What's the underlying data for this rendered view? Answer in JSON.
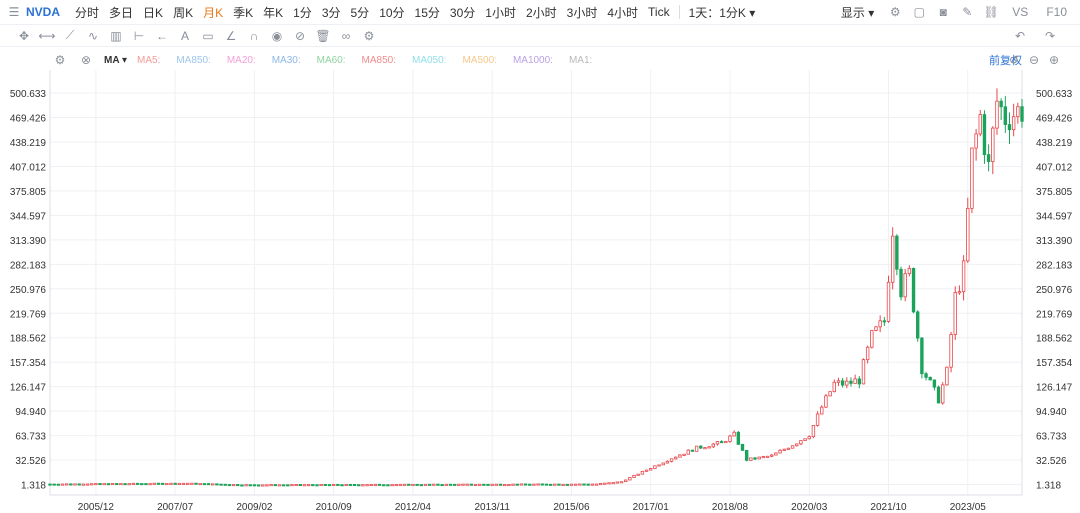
{
  "toolbar": {
    "symbol": "NVDA",
    "periods": [
      "分时",
      "多日",
      "日K",
      "周K",
      "月K",
      "季K",
      "年K",
      "1分",
      "3分",
      "5分",
      "10分",
      "15分",
      "30分",
      "1小时",
      "2小时",
      "3小时",
      "4小时",
      "Tick"
    ],
    "active_period": "月K",
    "range": "1天：1分K",
    "display": "显示",
    "vs": "VS",
    "f10": "F10"
  },
  "indicator": {
    "name": "MA",
    "items": [
      {
        "label": "MA5:",
        "color": "#f29a9a"
      },
      {
        "label": "MA850:",
        "color": "#9cc6ea"
      },
      {
        "label": "MA20:",
        "color": "#f4a0d8"
      },
      {
        "label": "MA30:",
        "color": "#8db7e8"
      },
      {
        "label": "MA60:",
        "color": "#8fd3a0"
      },
      {
        "label": "MA850:",
        "color": "#f08c8c"
      },
      {
        "label": "MA050:",
        "color": "#8fe0e8"
      },
      {
        "label": "MA500:",
        "color": "#f5c98a"
      },
      {
        "label": "MA1000:",
        "color": "#b7a2e6"
      },
      {
        "label": "MA1:",
        "color": "#b9b9b9"
      }
    ],
    "adjust_label": "前复权"
  },
  "colors": {
    "up": "#e8474b",
    "down": "#1aa35b",
    "grid": "#eef0f3",
    "accent": "#2b72d6"
  },
  "chart_data": {
    "type": "candlestick",
    "title": "",
    "xlabel": "",
    "ylabel": "",
    "y_ticks": [
      1.318,
      32.526,
      63.733,
      94.94,
      126.147,
      157.354,
      188.562,
      219.769,
      250.976,
      282.183,
      313.39,
      344.597,
      375.805,
      407.012,
      438.219,
      469.426,
      500.633
    ],
    "y_tick_labels": [
      "1.318",
      "32.526",
      "63.733",
      "94.940",
      "126.147",
      "157.354",
      "188.562",
      "219.769",
      "250.976",
      "282.183",
      "313.390",
      "344.597",
      "375.805",
      "407.012",
      "438.219",
      "469.426",
      "500.633"
    ],
    "ylim": [
      -12,
      530
    ],
    "x_start": "2005/01",
    "x_end": "2024/06",
    "x_ticks": [
      "2005/12",
      "2007/07",
      "2009/02",
      "2010/09",
      "2012/04",
      "2013/11",
      "2015/06",
      "2017/01",
      "2018/08",
      "2020/03",
      "2021/10",
      "2023/05"
    ],
    "grid": true,
    "keypoints": [
      [
        "2005/01",
        2
      ],
      [
        "2007/10",
        3
      ],
      [
        "2008/11",
        1
      ],
      [
        "2015/12",
        2
      ],
      [
        "2016/06",
        5
      ],
      [
        "2016/12",
        20
      ],
      [
        "2017/06",
        35
      ],
      [
        "2017/12",
        48
      ],
      [
        "2018/06",
        55
      ],
      [
        "2018/09",
        65
      ],
      [
        "2018/12",
        33
      ],
      [
        "2019/06",
        38
      ],
      [
        "2019/12",
        55
      ],
      [
        "2020/03",
        65
      ],
      [
        "2020/06",
        100
      ],
      [
        "2020/09",
        130
      ],
      [
        "2020/12",
        130
      ],
      [
        "2021/03",
        135
      ],
      [
        "2021/06",
        190
      ],
      [
        "2021/09",
        210
      ],
      [
        "2021/11",
        330
      ],
      [
        "2022/01",
        250
      ],
      [
        "2022/03",
        270
      ],
      [
        "2022/06",
        150
      ],
      [
        "2022/09",
        120
      ],
      [
        "2022/10",
        110
      ],
      [
        "2022/12",
        145
      ],
      [
        "2023/02",
        240
      ],
      [
        "2023/04",
        275
      ],
      [
        "2023/06",
        420
      ],
      [
        "2023/08",
        470
      ],
      [
        "2023/10",
        405
      ],
      [
        "2023/12",
        490
      ],
      [
        "2024/02",
        470
      ],
      [
        "2024/06",
        480
      ]
    ]
  }
}
